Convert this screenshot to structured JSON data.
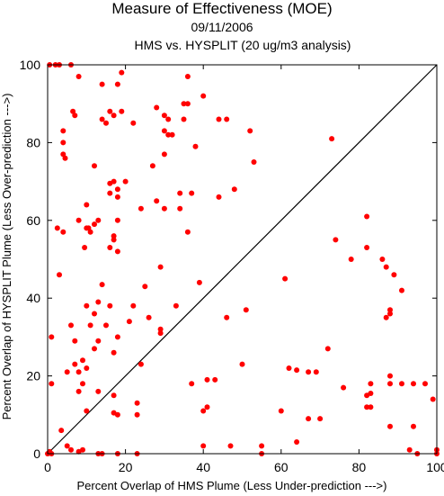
{
  "chart_data": {
    "type": "scatter",
    "title": "Measure of Effectiveness (MOE)",
    "subtitle_date": "09/11/2006",
    "subtitle_desc": "HMS vs. HYSPLIT  (20 ug/m3 analysis)",
    "xlabel": "Percent Overlap of HMS Plume (Less Under-prediction --->)",
    "ylabel": "Percent Overlap of HYSPLIT Plume (Less Over-prediction --->)",
    "xlim": [
      0,
      100
    ],
    "ylim": [
      0,
      100
    ],
    "xticks": [
      0,
      20,
      40,
      60,
      80,
      100
    ],
    "yticks": [
      0,
      20,
      40,
      60,
      80,
      100
    ],
    "marker_color": "#ff0000",
    "reference_line": "y = x",
    "points": [
      [
        0.5,
        100
      ],
      [
        2,
        100
      ],
      [
        3,
        100
      ],
      [
        6,
        100
      ],
      [
        8,
        97
      ],
      [
        19,
        98
      ],
      [
        36,
        97
      ],
      [
        18,
        95
      ],
      [
        14,
        95
      ],
      [
        40,
        92
      ],
      [
        35,
        90
      ],
      [
        36,
        90
      ],
      [
        28,
        89
      ],
      [
        6.5,
        88
      ],
      [
        7,
        87
      ],
      [
        16,
        88
      ],
      [
        17,
        87
      ],
      [
        19,
        88
      ],
      [
        14,
        86
      ],
      [
        15,
        85
      ],
      [
        30,
        87
      ],
      [
        31,
        86
      ],
      [
        35,
        86
      ],
      [
        44,
        86
      ],
      [
        46,
        86
      ],
      [
        22,
        85
      ],
      [
        4,
        83
      ],
      [
        30,
        83
      ],
      [
        31,
        82
      ],
      [
        32,
        82
      ],
      [
        52,
        83
      ],
      [
        4,
        80
      ],
      [
        38,
        79
      ],
      [
        4,
        77
      ],
      [
        4.5,
        76
      ],
      [
        73,
        81
      ],
      [
        53,
        75
      ],
      [
        30,
        77
      ],
      [
        12,
        74
      ],
      [
        27,
        74
      ],
      [
        20,
        70
      ],
      [
        16,
        69.5
      ],
      [
        17,
        70
      ],
      [
        18,
        68
      ],
      [
        16,
        67
      ],
      [
        18,
        66
      ],
      [
        34,
        67
      ],
      [
        37,
        67
      ],
      [
        44,
        66
      ],
      [
        48,
        68
      ],
      [
        10,
        64
      ],
      [
        28,
        65
      ],
      [
        24,
        63
      ],
      [
        30,
        63
      ],
      [
        34,
        63
      ],
      [
        8,
        60
      ],
      [
        12,
        59
      ],
      [
        13,
        60
      ],
      [
        18,
        60
      ],
      [
        10,
        58
      ],
      [
        10.5,
        58
      ],
      [
        11,
        57
      ],
      [
        2.5,
        58
      ],
      [
        4,
        57
      ],
      [
        17,
        56
      ],
      [
        17,
        55
      ],
      [
        36,
        57
      ],
      [
        82,
        61
      ],
      [
        74,
        55
      ],
      [
        82,
        53
      ],
      [
        9.5,
        53
      ],
      [
        16,
        53
      ],
      [
        18,
        52
      ],
      [
        86,
        50
      ],
      [
        87,
        48
      ],
      [
        78,
        50
      ],
      [
        29,
        48
      ],
      [
        3,
        46
      ],
      [
        61,
        45
      ],
      [
        89,
        46
      ],
      [
        39,
        44
      ],
      [
        25,
        43
      ],
      [
        14,
        43.5
      ],
      [
        13,
        39
      ],
      [
        16,
        38
      ],
      [
        10,
        38
      ],
      [
        22,
        38
      ],
      [
        33,
        38
      ],
      [
        12,
        36
      ],
      [
        21,
        34
      ],
      [
        26,
        35
      ],
      [
        46,
        35
      ],
      [
        51,
        37
      ],
      [
        88,
        37
      ],
      [
        88,
        36
      ],
      [
        87,
        35
      ],
      [
        91,
        42
      ],
      [
        6,
        33
      ],
      [
        11,
        33
      ],
      [
        15,
        33
      ],
      [
        1,
        30
      ],
      [
        18,
        30
      ],
      [
        29,
        32
      ],
      [
        29,
        31
      ],
      [
        7,
        29
      ],
      [
        13,
        29
      ],
      [
        17,
        26
      ],
      [
        12,
        27
      ],
      [
        72,
        27
      ],
      [
        9,
        24
      ],
      [
        10,
        22
      ],
      [
        7,
        23
      ],
      [
        5,
        21
      ],
      [
        8,
        21
      ],
      [
        9,
        18
      ],
      [
        24,
        23
      ],
      [
        50,
        23
      ],
      [
        62,
        22
      ],
      [
        64,
        21.5
      ],
      [
        67,
        21
      ],
      [
        69,
        21
      ],
      [
        88,
        20
      ],
      [
        88,
        18
      ],
      [
        1,
        18
      ],
      [
        8,
        16
      ],
      [
        13,
        16
      ],
      [
        17,
        15
      ],
      [
        37,
        18
      ],
      [
        41,
        19
      ],
      [
        43,
        19
      ],
      [
        76,
        17
      ],
      [
        83,
        18
      ],
      [
        82,
        15
      ],
      [
        83,
        15.5
      ],
      [
        91,
        18
      ],
      [
        94,
        18
      ],
      [
        97,
        18
      ],
      [
        99,
        14
      ],
      [
        10,
        11
      ],
      [
        23,
        13
      ],
      [
        23,
        10
      ],
      [
        18,
        10
      ],
      [
        17,
        10.5
      ],
      [
        40,
        11
      ],
      [
        41,
        12
      ],
      [
        60,
        11
      ],
      [
        67,
        9
      ],
      [
        70,
        9
      ],
      [
        82,
        12
      ],
      [
        83,
        12
      ],
      [
        88,
        7
      ],
      [
        94,
        7
      ],
      [
        3.5,
        6
      ],
      [
        5,
        2
      ],
      [
        6,
        1
      ],
      [
        8,
        0.5
      ],
      [
        9,
        1
      ],
      [
        13,
        0
      ],
      [
        14,
        0
      ],
      [
        18,
        0
      ],
      [
        23,
        0
      ],
      [
        40,
        2
      ],
      [
        47,
        2
      ],
      [
        55,
        2
      ],
      [
        64,
        3
      ],
      [
        93,
        1
      ],
      [
        95,
        0
      ],
      [
        100,
        1
      ],
      [
        100,
        0
      ],
      [
        0,
        0
      ],
      [
        1,
        0
      ],
      [
        0.5,
        0.5
      ],
      [
        55,
        0
      ]
    ]
  }
}
